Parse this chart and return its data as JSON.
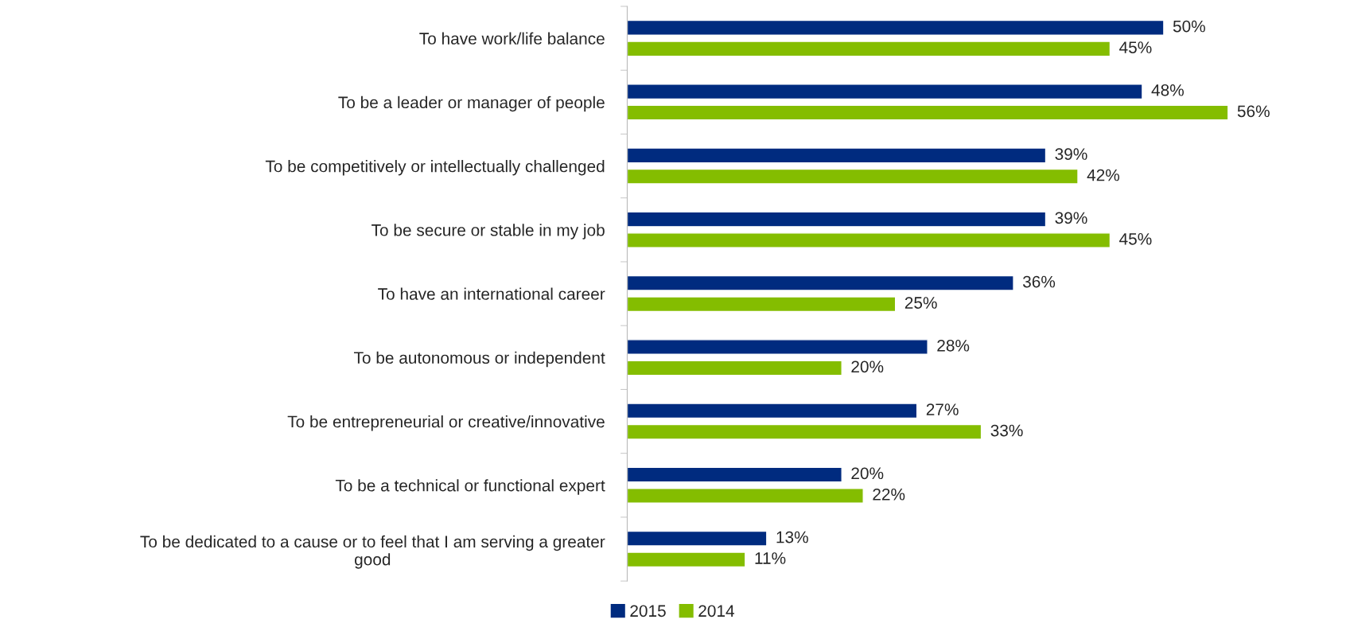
{
  "chart_data": {
    "type": "bar",
    "orientation": "horizontal",
    "legend": "bottom",
    "grid": false,
    "categories": [
      "To have work/life balance",
      "To be a leader or manager of people",
      "To be competitively or intellectually challenged",
      "To be secure or stable in my job",
      "To have an international career",
      "To be autonomous or independent",
      "To be entrepreneurial or creative/innovative",
      "To be a technical or functional expert",
      "To be dedicated to a cause or to feel that I am serving a greater\ngood"
    ],
    "series": [
      {
        "name": "2015",
        "color": "#002b7f",
        "values": [
          50,
          48,
          39,
          39,
          36,
          28,
          27,
          20,
          13
        ],
        "value_labels": [
          "50%",
          "48%",
          "39%",
          "39%",
          "36%",
          "28%",
          "27%",
          "20%",
          "13%"
        ]
      },
      {
        "name": "2014",
        "color": "#84bd00",
        "values": [
          45,
          56,
          42,
          45,
          25,
          20,
          33,
          22,
          11
        ],
        "value_labels": [
          "45%",
          "56%",
          "42%",
          "45%",
          "25%",
          "20%",
          "33%",
          "22%",
          "11%"
        ]
      }
    ]
  }
}
